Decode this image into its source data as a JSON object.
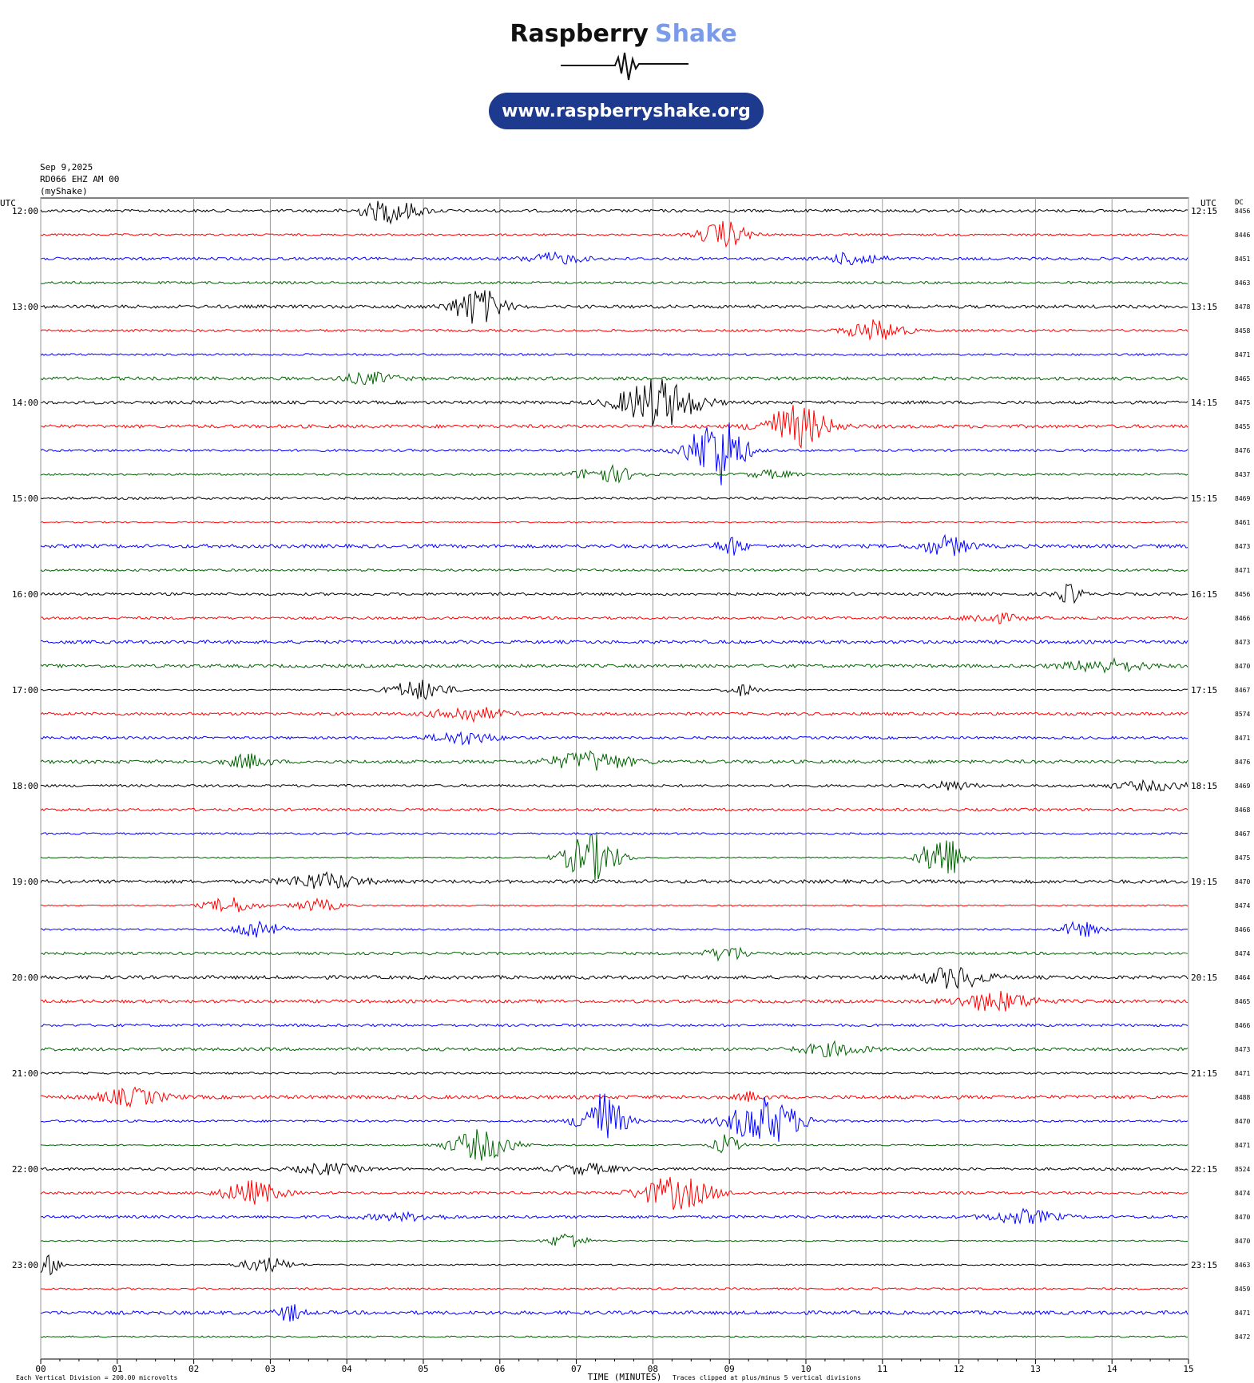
{
  "header": {
    "brand_first": "Raspberry",
    "brand_second": "Shake",
    "url": "www.raspberryshake.org"
  },
  "info": [
    "Sep 9,2025",
    "RD066 EHZ AM 00",
    "(myShake)"
  ],
  "left_axis_title": "UTC",
  "right_axis_title": "UTC",
  "dc_title": "DC",
  "left_labels": [
    "12:00",
    "13:00",
    "14:00",
    "15:00",
    "16:00",
    "17:00",
    "18:00",
    "19:00",
    "20:00",
    "21:00",
    "22:00",
    "23:00"
  ],
  "right_labels": [
    "12:15",
    "13:15",
    "14:15",
    "15:15",
    "16:15",
    "17:15",
    "18:15",
    "19:15",
    "20:15",
    "21:15",
    "22:15",
    "23:15"
  ],
  "dc_values": [
    8456,
    8446,
    8451,
    8463,
    8478,
    8458,
    8471,
    8465,
    8475,
    8455,
    8476,
    8437,
    8469,
    8461,
    8473,
    8471,
    8456,
    8466,
    8473,
    8470,
    8467,
    8574,
    8471,
    8476,
    8469,
    8468,
    8467,
    8475,
    8470,
    8474,
    8466,
    8474,
    8464,
    8465,
    8466,
    8473,
    8471,
    8488,
    8470,
    8471,
    8524,
    8474,
    8470,
    8470,
    8463,
    8459,
    8471,
    8472
  ],
  "trace_colors": [
    "#000000",
    "#ff0000",
    "#0000ff",
    "#006400"
  ],
  "x_labels": [
    "00",
    "01",
    "02",
    "03",
    "04",
    "05",
    "06",
    "07",
    "08",
    "09",
    "10",
    "11",
    "12",
    "13",
    "14",
    "15"
  ],
  "x_axis_title": "TIME (MINUTES)",
  "scale_note": "Each Vertical Division =  200.00 microvolts",
  "clip_note": "Traces clipped at plus/minus 5 vertical divisions"
}
